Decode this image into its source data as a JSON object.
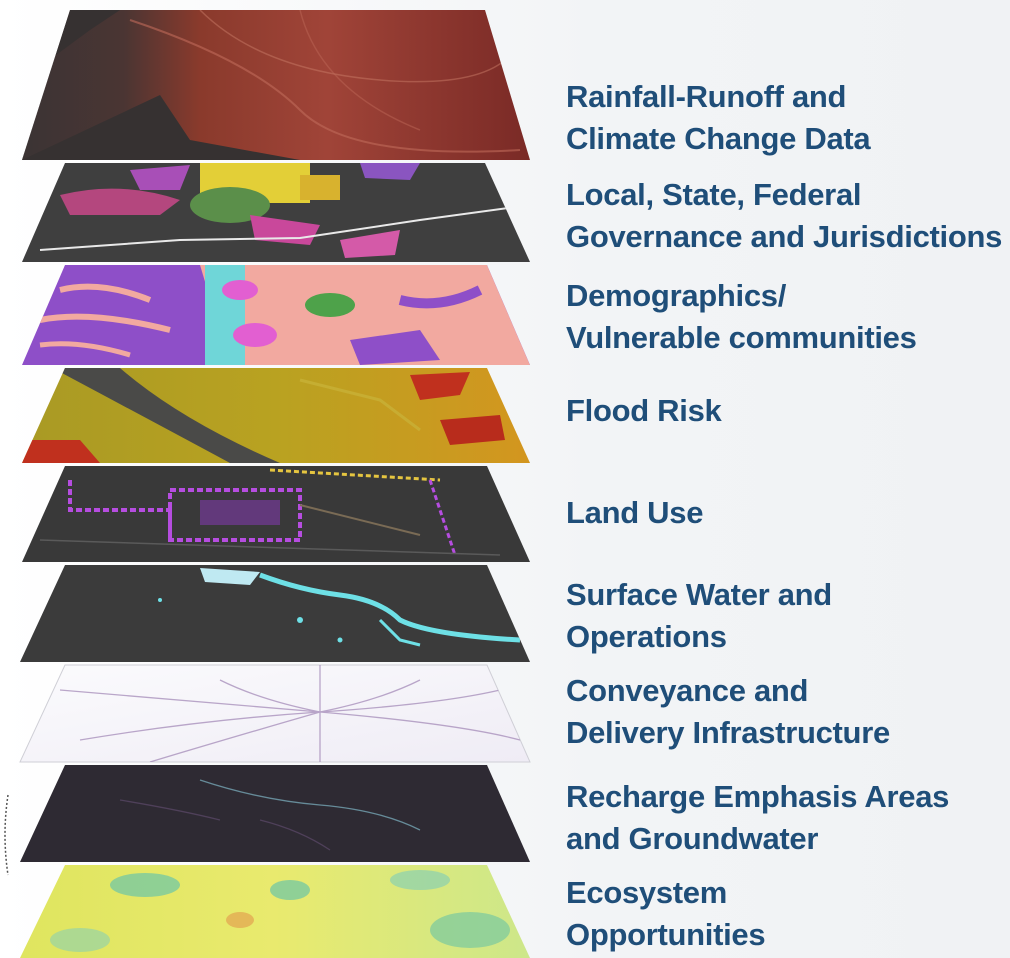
{
  "layers": [
    {
      "id": "rainfall",
      "lines": [
        "Rainfall-Runoff and",
        "Climate Change Data"
      ],
      "palette": [
        "#7a2a26",
        "#a6443c",
        "#3a3333"
      ]
    },
    {
      "id": "governance",
      "lines": [
        "Local, State, Federal",
        "Governance and Jurisdictions"
      ],
      "palette": [
        "#3f3f3f",
        "#c9489b",
        "#e8d33a",
        "#5b8f4a"
      ]
    },
    {
      "id": "demographics",
      "lines": [
        "Demographics/",
        "Vulnerable communities"
      ],
      "palette": [
        "#8e4fc8",
        "#f2a9a0",
        "#6fd6d8",
        "#e25fd1"
      ]
    },
    {
      "id": "flood",
      "lines": [
        "Flood Risk"
      ],
      "palette": [
        "#b2a021",
        "#d49a1e",
        "#4a4a48",
        "#c0301e"
      ]
    },
    {
      "id": "landuse",
      "lines": [
        "Land Use"
      ],
      "palette": [
        "#393939",
        "#b64de0",
        "#e5c540",
        "#7a6b55"
      ]
    },
    {
      "id": "surfacewater",
      "lines": [
        "Surface Water and",
        "Operations"
      ],
      "palette": [
        "#3b3b3b",
        "#6ee0e6",
        "#bfe9f2"
      ]
    },
    {
      "id": "conveyance",
      "lines": [
        "Conveyance and",
        "Delivery Infrastructure"
      ],
      "palette": [
        "#f6f5fa",
        "#a48bb8",
        "#d7cde0"
      ]
    },
    {
      "id": "recharge",
      "lines": [
        "Recharge Emphasis Areas",
        "and Groundwater"
      ],
      "palette": [
        "#2e2a33",
        "#5d4a6b",
        "#7fb5c5"
      ]
    },
    {
      "id": "ecosystem",
      "lines": [
        "Ecosystem",
        "Opportunities"
      ],
      "palette": [
        "#e8e96a",
        "#79c9a0",
        "#d8e85a",
        "#e3a350"
      ]
    }
  ]
}
